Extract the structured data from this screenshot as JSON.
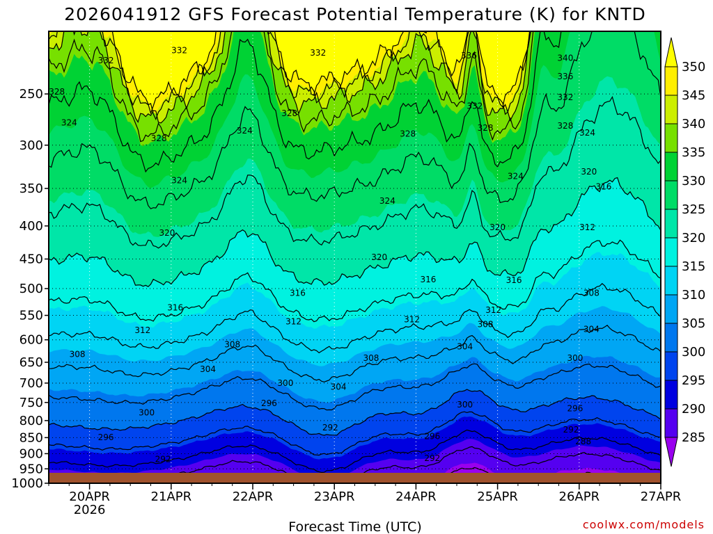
{
  "chart_data": {
    "type": "contour",
    "title": "2026041912 GFS Forecast Potential Temperature (K) for KNTD",
    "xlabel": "Forecast Time (UTC)",
    "ylabel": "",
    "credit": "coolwx.com/models",
    "x_categories": [
      "20APR",
      "21APR",
      "22APR",
      "23APR",
      "24APR",
      "25APR",
      "26APR",
      "27APR"
    ],
    "x_sublabel": "2026",
    "x_range_days": [
      19.5,
      27.0
    ],
    "y_ticks_hpa": [
      250,
      300,
      350,
      400,
      450,
      500,
      550,
      600,
      650,
      700,
      750,
      800,
      850,
      900,
      950,
      1000
    ],
    "y_range_hpa": [
      200,
      1000
    ],
    "colorbar": {
      "levels": [
        285,
        290,
        295,
        300,
        305,
        310,
        315,
        320,
        325,
        330,
        335,
        340,
        345,
        350
      ],
      "colors": [
        "#9900ee",
        "#5500f0",
        "#0000e0",
        "#0044ee",
        "#0077ee",
        "#00a6f4",
        "#00d4f4",
        "#00f2e0",
        "#00e6a8",
        "#00dc66",
        "#00d234",
        "#77e000",
        "#ccee00",
        "#ffee00",
        "#ffff00"
      ],
      "min_arrow_color": "#9900ee",
      "max_arrow_color": "#ffff00"
    },
    "isentropes_K": [
      284,
      288,
      292,
      296,
      300,
      304,
      308,
      312,
      316,
      320,
      324,
      328,
      332,
      336,
      340,
      344,
      348
    ],
    "contour_labels": [
      {
        "text": "332",
        "day": 20.2,
        "hpa": 222
      },
      {
        "text": "332",
        "day": 21.1,
        "hpa": 214
      },
      {
        "text": "332",
        "day": 22.8,
        "hpa": 216
      },
      {
        "text": "336",
        "day": 24.65,
        "hpa": 218
      },
      {
        "text": "340",
        "day": 25.83,
        "hpa": 220
      },
      {
        "text": "336",
        "day": 25.83,
        "hpa": 235
      },
      {
        "text": "328",
        "day": 19.6,
        "hpa": 248
      },
      {
        "text": "332",
        "day": 25.83,
        "hpa": 253
      },
      {
        "text": "324",
        "day": 19.75,
        "hpa": 277
      },
      {
        "text": "328",
        "day": 22.45,
        "hpa": 268
      },
      {
        "text": "332",
        "day": 24.72,
        "hpa": 261
      },
      {
        "text": "328",
        "day": 25.83,
        "hpa": 280
      },
      {
        "text": "328",
        "day": 24.85,
        "hpa": 282
      },
      {
        "text": "328",
        "day": 20.85,
        "hpa": 293
      },
      {
        "text": "324",
        "day": 21.9,
        "hpa": 285
      },
      {
        "text": "328",
        "day": 23.9,
        "hpa": 288
      },
      {
        "text": "324",
        "day": 26.1,
        "hpa": 287
      },
      {
        "text": "324",
        "day": 21.1,
        "hpa": 340
      },
      {
        "text": "324",
        "day": 25.22,
        "hpa": 335
      },
      {
        "text": "320",
        "day": 26.12,
        "hpa": 330
      },
      {
        "text": "316",
        "day": 26.3,
        "hpa": 348
      },
      {
        "text": "324",
        "day": 23.65,
        "hpa": 366
      },
      {
        "text": "320",
        "day": 20.95,
        "hpa": 410
      },
      {
        "text": "320",
        "day": 25.0,
        "hpa": 402
      },
      {
        "text": "312",
        "day": 26.1,
        "hpa": 402
      },
      {
        "text": "320",
        "day": 23.55,
        "hpa": 447
      },
      {
        "text": "316",
        "day": 24.15,
        "hpa": 484
      },
      {
        "text": "316",
        "day": 25.2,
        "hpa": 485
      },
      {
        "text": "316",
        "day": 22.55,
        "hpa": 508
      },
      {
        "text": "308",
        "day": 26.15,
        "hpa": 508
      },
      {
        "text": "316",
        "day": 21.05,
        "hpa": 535
      },
      {
        "text": "312",
        "day": 24.95,
        "hpa": 540
      },
      {
        "text": "312",
        "day": 22.5,
        "hpa": 562
      },
      {
        "text": "312",
        "day": 23.95,
        "hpa": 558
      },
      {
        "text": "308",
        "day": 24.85,
        "hpa": 568
      },
      {
        "text": "304",
        "day": 26.15,
        "hpa": 578
      },
      {
        "text": "312",
        "day": 20.65,
        "hpa": 580
      },
      {
        "text": "304",
        "day": 24.6,
        "hpa": 615
      },
      {
        "text": "308",
        "day": 21.75,
        "hpa": 610
      },
      {
        "text": "308",
        "day": 19.85,
        "hpa": 632
      },
      {
        "text": "308",
        "day": 23.45,
        "hpa": 640
      },
      {
        "text": "300",
        "day": 25.95,
        "hpa": 640
      },
      {
        "text": "304",
        "day": 21.45,
        "hpa": 666
      },
      {
        "text": "300",
        "day": 22.4,
        "hpa": 700
      },
      {
        "text": "304",
        "day": 23.05,
        "hpa": 710
      },
      {
        "text": "296",
        "day": 22.2,
        "hpa": 752
      },
      {
        "text": "300",
        "day": 24.6,
        "hpa": 756
      },
      {
        "text": "296",
        "day": 25.95,
        "hpa": 766
      },
      {
        "text": "300",
        "day": 20.7,
        "hpa": 778
      },
      {
        "text": "292",
        "day": 22.95,
        "hpa": 820
      },
      {
        "text": "292",
        "day": 25.9,
        "hpa": 826
      },
      {
        "text": "296",
        "day": 20.2,
        "hpa": 849
      },
      {
        "text": "296",
        "day": 24.2,
        "hpa": 846
      },
      {
        "text": "288",
        "day": 26.05,
        "hpa": 862
      },
      {
        "text": "292",
        "day": 20.9,
        "hpa": 918
      },
      {
        "text": "292",
        "day": 24.2,
        "hpa": 915
      }
    ]
  }
}
